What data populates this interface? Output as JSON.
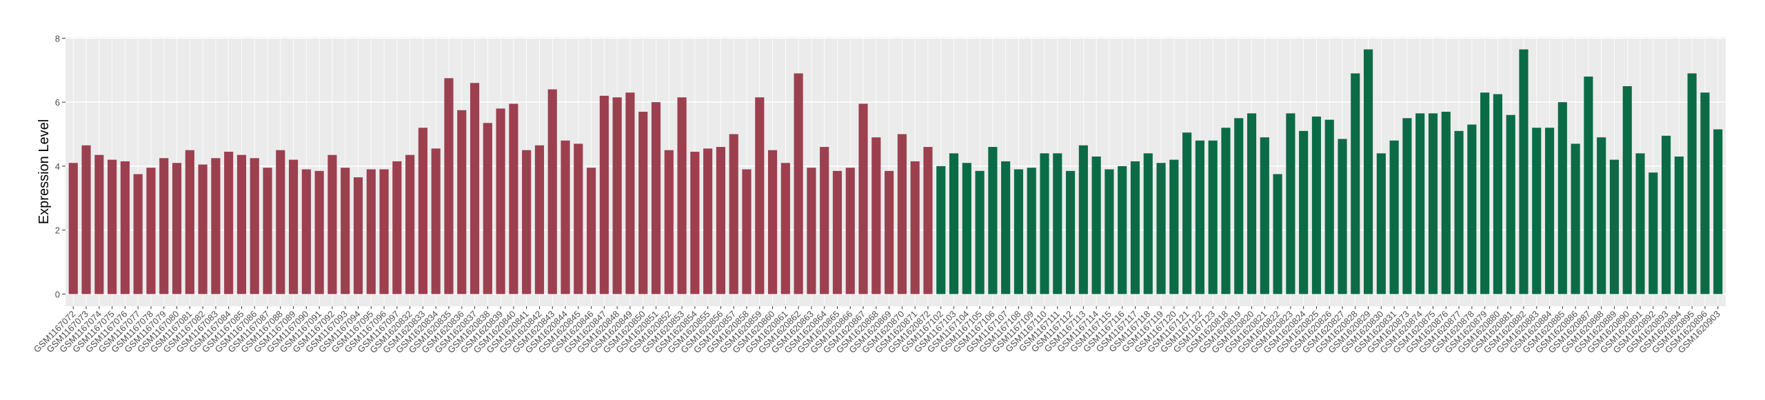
{
  "chart_data": {
    "type": "bar",
    "y_label": "Expression Level",
    "ylim": [
      -0.38,
      8.03
    ],
    "yticks": [
      0,
      2,
      4,
      6,
      8
    ],
    "grid": true,
    "series": [
      {
        "color": "#9c3f4f",
        "categories": [
          "GSM1167072",
          "GSM1167073",
          "GSM1167074",
          "GSM1167075",
          "GSM1167076",
          "GSM1167077",
          "GSM1167078",
          "GSM1167079",
          "GSM1167080",
          "GSM1167081",
          "GSM1167082",
          "GSM1167083",
          "GSM1167084",
          "GSM1167085",
          "GSM1167086",
          "GSM1167087",
          "GSM1167088",
          "GSM1167089",
          "GSM1167090",
          "GSM1167091",
          "GSM1167092",
          "GSM1167093",
          "GSM1167094",
          "GSM1167095",
          "GSM1167096",
          "GSM1167097",
          "GSM1620832",
          "GSM1620833",
          "GSM1620834",
          "GSM1620835",
          "GSM1620836",
          "GSM1620837",
          "GSM1620838",
          "GSM1620839",
          "GSM1620840",
          "GSM1620841",
          "GSM1620842",
          "GSM1620843",
          "GSM1620844",
          "GSM1620845",
          "GSM1620846",
          "GSM1620847",
          "GSM1620848",
          "GSM1620849",
          "GSM1620850",
          "GSM1620851",
          "GSM1620852",
          "GSM1620853",
          "GSM1620854",
          "GSM1620855",
          "GSM1620856",
          "GSM1620857",
          "GSM1620858",
          "GSM1620859",
          "GSM1620860",
          "GSM1620861",
          "GSM1620862",
          "GSM1620863",
          "GSM1620864",
          "GSM1620865",
          "GSM1620866",
          "GSM1620867",
          "GSM1620868",
          "GSM1620869",
          "GSM1620870",
          "GSM1620871",
          "GSM1620872"
        ],
        "values": [
          4.1,
          4.65,
          4.35,
          4.2,
          4.15,
          3.75,
          3.95,
          4.25,
          4.1,
          4.5,
          4.05,
          4.25,
          4.45,
          4.35,
          4.25,
          3.95,
          4.5,
          4.2,
          3.9,
          3.85,
          4.35,
          3.95,
          3.65,
          3.9,
          3.9,
          4.15,
          4.35,
          5.2,
          4.55,
          6.75,
          5.75,
          6.6,
          5.35,
          5.8,
          5.95,
          4.5,
          4.65,
          6.4,
          4.8,
          4.7,
          3.95,
          6.2,
          6.15,
          6.3,
          5.7,
          6.0,
          4.5,
          6.15,
          4.45,
          4.55,
          4.6,
          5.0,
          3.9,
          6.15,
          4.5,
          4.1,
          6.9,
          3.95,
          4.6,
          3.85,
          3.95,
          5.95,
          4.9,
          3.85,
          5.0,
          4.15,
          4.6
        ]
      },
      {
        "color": "#0b6b47",
        "categories": [
          "GSM1167102",
          "GSM1167103",
          "GSM1167104",
          "GSM1167105",
          "GSM1167106",
          "GSM1167107",
          "GSM1167108",
          "GSM1167109",
          "GSM1167110",
          "GSM1167111",
          "GSM1167112",
          "GSM1167113",
          "GSM1167114",
          "GSM1167115",
          "GSM1167116",
          "GSM1167117",
          "GSM1167118",
          "GSM1167119",
          "GSM1167120",
          "GSM1167121",
          "GSM1167122",
          "GSM1167123",
          "GSM1620818",
          "GSM1620819",
          "GSM1620820",
          "GSM1620821",
          "GSM1620822",
          "GSM1620823",
          "GSM1620824",
          "GSM1620825",
          "GSM1620826",
          "GSM1620827",
          "GSM1620828",
          "GSM1620829",
          "GSM1620830",
          "GSM1620831",
          "GSM1620873",
          "GSM1620874",
          "GSM1620875",
          "GSM1620876",
          "GSM1620877",
          "GSM1620878",
          "GSM1620879",
          "GSM1620880",
          "GSM1620881",
          "GSM1620882",
          "GSM1620883",
          "GSM1620884",
          "GSM1620885",
          "GSM1620886",
          "GSM1620887",
          "GSM1620888",
          "GSM1620889",
          "GSM1620890",
          "GSM1620891",
          "GSM1620892",
          "GSM1620893",
          "GSM1620894",
          "GSM1620895",
          "GSM1620896",
          "GSM1620903"
        ],
        "values": [
          4.0,
          4.4,
          4.1,
          3.85,
          4.6,
          4.15,
          3.9,
          3.95,
          4.4,
          4.4,
          3.85,
          4.65,
          4.3,
          3.9,
          4.0,
          4.15,
          4.4,
          4.1,
          4.2,
          5.05,
          4.8,
          4.8,
          5.2,
          5.5,
          5.65,
          4.9,
          3.75,
          5.65,
          5.1,
          5.55,
          5.45,
          4.85,
          6.9,
          7.65,
          4.4,
          4.8,
          5.5,
          5.65,
          5.65,
          5.7,
          5.1,
          5.3,
          6.3,
          6.25,
          5.6,
          7.65,
          5.2,
          5.2,
          6.0,
          4.7,
          6.8,
          4.9,
          4.2,
          6.5,
          4.4,
          3.8,
          4.95,
          4.3,
          6.9,
          6.3,
          5.15
        ]
      }
    ]
  }
}
